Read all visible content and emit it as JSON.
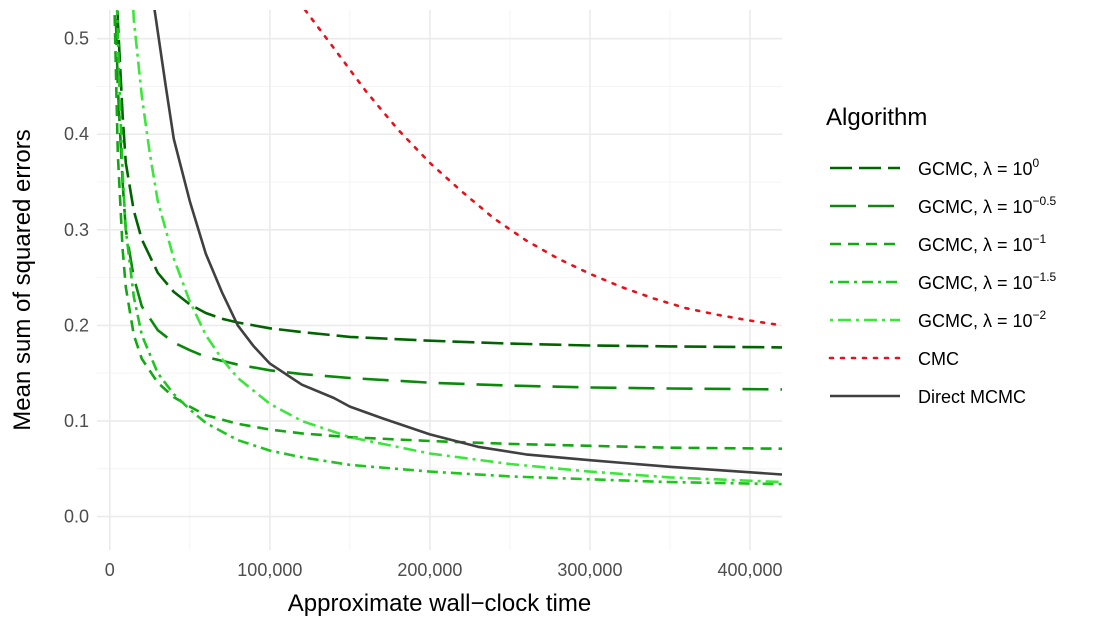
{
  "chart_data": {
    "type": "line",
    "title": "",
    "xlabel": "Approximate wall−clock time",
    "ylabel": "Mean sum of squared errors",
    "xlim": [
      -8000,
      420000
    ],
    "ylim": [
      -0.035,
      0.53
    ],
    "x_ticks": [
      0,
      100000,
      200000,
      300000,
      400000
    ],
    "x_tick_labels": [
      "0",
      "100,000",
      "200,000",
      "300,000",
      "400,000"
    ],
    "y_ticks": [
      0.0,
      0.1,
      0.2,
      0.3,
      0.4,
      0.5
    ],
    "y_tick_labels": [
      "0.0",
      "0.1",
      "0.2",
      "0.3",
      "0.4",
      "0.5"
    ],
    "grid": true,
    "legend": {
      "title": "Algorithm",
      "position": "right"
    },
    "series": [
      {
        "name": "GCMC, λ = 10^0",
        "label_base": "GCMC, λ = 10",
        "label_exp": "0",
        "color": "#006400",
        "dash": "longdash",
        "points": [
          [
            3000,
            0.62
          ],
          [
            5000,
            0.52
          ],
          [
            8000,
            0.42
          ],
          [
            10000,
            0.37
          ],
          [
            15000,
            0.32
          ],
          [
            20000,
            0.29
          ],
          [
            30000,
            0.255
          ],
          [
            40000,
            0.235
          ],
          [
            50000,
            0.222
          ],
          [
            60000,
            0.213
          ],
          [
            70000,
            0.207
          ],
          [
            80000,
            0.203
          ],
          [
            90000,
            0.2
          ],
          [
            100000,
            0.197
          ],
          [
            120000,
            0.193
          ],
          [
            150000,
            0.188
          ],
          [
            200000,
            0.184
          ],
          [
            250000,
            0.181
          ],
          [
            300000,
            0.179
          ],
          [
            350000,
            0.178
          ],
          [
            420000,
            0.177
          ]
        ]
      },
      {
        "name": "GCMC, λ = 10^-0.5",
        "label_base": "GCMC, λ = 10",
        "label_exp": "−0.5",
        "color": "#0A8A0A",
        "dash": "longdash2",
        "points": [
          [
            2500,
            0.6
          ],
          [
            5000,
            0.45
          ],
          [
            8000,
            0.35
          ],
          [
            10000,
            0.3
          ],
          [
            15000,
            0.25
          ],
          [
            20000,
            0.22
          ],
          [
            30000,
            0.195
          ],
          [
            40000,
            0.182
          ],
          [
            50000,
            0.174
          ],
          [
            60000,
            0.167
          ],
          [
            80000,
            0.159
          ],
          [
            100000,
            0.153
          ],
          [
            120000,
            0.149
          ],
          [
            150000,
            0.145
          ],
          [
            200000,
            0.14
          ],
          [
            250000,
            0.137
          ],
          [
            300000,
            0.135
          ],
          [
            350000,
            0.134
          ],
          [
            420000,
            0.133
          ]
        ]
      },
      {
        "name": "GCMC, λ = 10^-1",
        "label_base": "GCMC, λ = 10",
        "label_exp": "−1",
        "color": "#12A812",
        "dash": "dashed",
        "points": [
          [
            2000,
            0.6
          ],
          [
            5000,
            0.38
          ],
          [
            8000,
            0.28
          ],
          [
            10000,
            0.24
          ],
          [
            15000,
            0.19
          ],
          [
            20000,
            0.165
          ],
          [
            30000,
            0.14
          ],
          [
            40000,
            0.125
          ],
          [
            50000,
            0.115
          ],
          [
            60000,
            0.106
          ],
          [
            80000,
            0.097
          ],
          [
            100000,
            0.091
          ],
          [
            120000,
            0.087
          ],
          [
            150000,
            0.083
          ],
          [
            200000,
            0.079
          ],
          [
            250000,
            0.076
          ],
          [
            300000,
            0.074
          ],
          [
            350000,
            0.072
          ],
          [
            420000,
            0.071
          ]
        ]
      },
      {
        "name": "GCMC, λ = 10^-1.5",
        "label_base": "GCMC, λ = 10",
        "label_exp": "−1.5",
        "color": "#1EC61E",
        "dash": "dotdash",
        "points": [
          [
            3000,
            0.62
          ],
          [
            6000,
            0.45
          ],
          [
            8000,
            0.36
          ],
          [
            10000,
            0.3
          ],
          [
            15000,
            0.23
          ],
          [
            20000,
            0.19
          ],
          [
            30000,
            0.15
          ],
          [
            40000,
            0.128
          ],
          [
            50000,
            0.112
          ],
          [
            60000,
            0.098
          ],
          [
            80000,
            0.08
          ],
          [
            100000,
            0.069
          ],
          [
            120000,
            0.062
          ],
          [
            150000,
            0.054
          ],
          [
            200000,
            0.047
          ],
          [
            250000,
            0.042
          ],
          [
            300000,
            0.039
          ],
          [
            350000,
            0.036
          ],
          [
            420000,
            0.034
          ]
        ]
      },
      {
        "name": "GCMC, λ = 10^-2",
        "label_base": "GCMC, λ = 10",
        "label_exp": "−2",
        "color": "#3CE63C",
        "dash": "dotdash2",
        "points": [
          [
            12000,
            0.62
          ],
          [
            15000,
            0.52
          ],
          [
            20000,
            0.44
          ],
          [
            25000,
            0.38
          ],
          [
            30000,
            0.33
          ],
          [
            40000,
            0.27
          ],
          [
            50000,
            0.225
          ],
          [
            60000,
            0.19
          ],
          [
            70000,
            0.165
          ],
          [
            80000,
            0.145
          ],
          [
            100000,
            0.118
          ],
          [
            120000,
            0.1
          ],
          [
            150000,
            0.083
          ],
          [
            200000,
            0.066
          ],
          [
            250000,
            0.055
          ],
          [
            300000,
            0.047
          ],
          [
            350000,
            0.041
          ],
          [
            420000,
            0.036
          ]
        ]
      },
      {
        "name": "CMC",
        "label_base": "CMC",
        "label_exp": "",
        "color": "#E8101A",
        "dash": "dotted",
        "points": [
          [
            122000,
            0.53
          ],
          [
            140000,
            0.49
          ],
          [
            160000,
            0.445
          ],
          [
            180000,
            0.405
          ],
          [
            200000,
            0.37
          ],
          [
            220000,
            0.34
          ],
          [
            240000,
            0.312
          ],
          [
            260000,
            0.289
          ],
          [
            280000,
            0.27
          ],
          [
            300000,
            0.254
          ],
          [
            320000,
            0.24
          ],
          [
            340000,
            0.228
          ],
          [
            360000,
            0.218
          ],
          [
            380000,
            0.211
          ],
          [
            400000,
            0.205
          ],
          [
            420000,
            0.2
          ]
        ]
      },
      {
        "name": "Direct MCMC",
        "label_base": "Direct MCMC",
        "label_exp": "",
        "color": "#404040",
        "dash": "solid",
        "points": [
          [
            24000,
            0.6
          ],
          [
            28000,
            0.53
          ],
          [
            35000,
            0.45
          ],
          [
            40000,
            0.395
          ],
          [
            50000,
            0.33
          ],
          [
            60000,
            0.275
          ],
          [
            70000,
            0.235
          ],
          [
            80000,
            0.2
          ],
          [
            90000,
            0.178
          ],
          [
            100000,
            0.16
          ],
          [
            120000,
            0.138
          ],
          [
            140000,
            0.124
          ],
          [
            150000,
            0.115
          ],
          [
            170000,
            0.103
          ],
          [
            200000,
            0.086
          ],
          [
            230000,
            0.073
          ],
          [
            260000,
            0.065
          ],
          [
            300000,
            0.059
          ],
          [
            350000,
            0.052
          ],
          [
            420000,
            0.044
          ]
        ]
      }
    ]
  }
}
